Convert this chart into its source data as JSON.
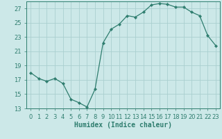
{
  "x": [
    0,
    1,
    2,
    3,
    4,
    5,
    6,
    7,
    8,
    9,
    10,
    11,
    12,
    13,
    14,
    15,
    16,
    17,
    18,
    19,
    20,
    21,
    22,
    23
  ],
  "y": [
    18.0,
    17.2,
    16.8,
    17.2,
    16.5,
    14.3,
    13.8,
    13.2,
    15.7,
    22.2,
    24.1,
    24.8,
    26.0,
    25.8,
    26.5,
    27.5,
    27.7,
    27.6,
    27.2,
    27.2,
    26.5,
    26.0,
    23.2,
    21.8
  ],
  "line_color": "#2e7d6e",
  "marker": "D",
  "marker_size": 2.2,
  "bg_color": "#cce8e8",
  "grid_color": "#aacfcf",
  "xlabel": "Humidex (Indice chaleur)",
  "ylim": [
    13,
    28
  ],
  "xlim": [
    -0.5,
    23.5
  ],
  "yticks": [
    13,
    15,
    17,
    19,
    21,
    23,
    25,
    27
  ],
  "xtick_labels": [
    "0",
    "1",
    "2",
    "3",
    "4",
    "5",
    "6",
    "7",
    "8",
    "9",
    "10",
    "11",
    "12",
    "13",
    "14",
    "15",
    "16",
    "17",
    "18",
    "19",
    "20",
    "21",
    "22",
    "23"
  ],
  "tick_color": "#2e7d6e",
  "label_color": "#2e7d6e",
  "axis_fontsize": 7,
  "tick_fontsize": 6
}
